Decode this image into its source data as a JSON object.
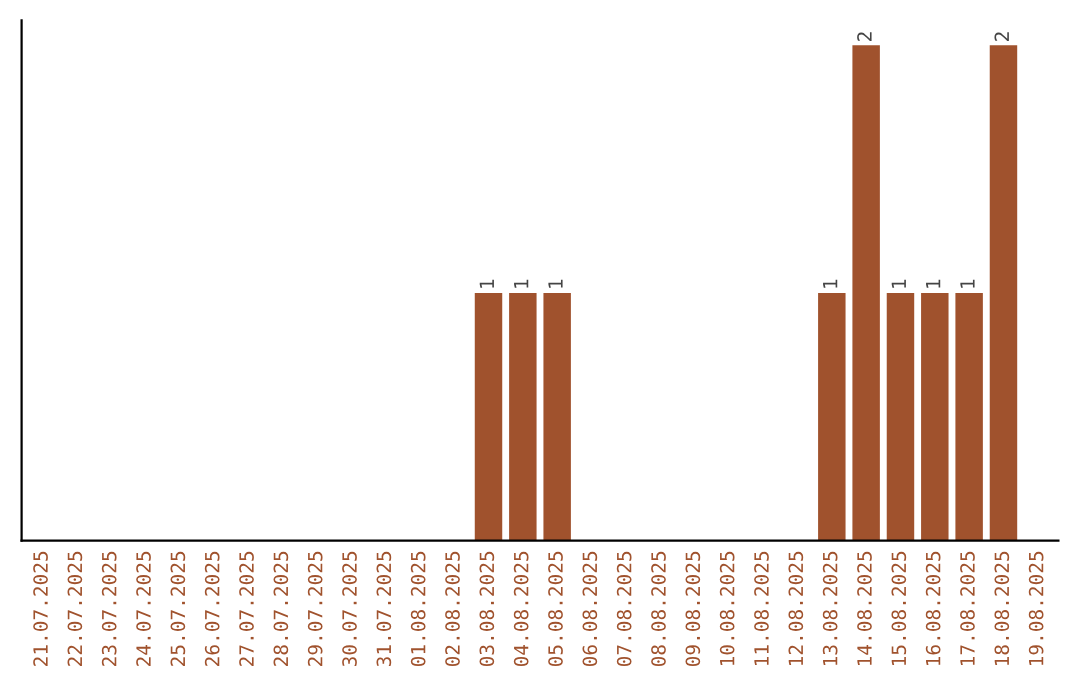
{
  "chart_data": {
    "type": "bar",
    "categories": [
      "21.07.2025",
      "22.07.2025",
      "23.07.2025",
      "24.07.2025",
      "25.07.2025",
      "26.07.2025",
      "27.07.2025",
      "28.07.2025",
      "29.07.2025",
      "30.07.2025",
      "31.07.2025",
      "01.08.2025",
      "02.08.2025",
      "03.08.2025",
      "04.08.2025",
      "05.08.2025",
      "06.08.2025",
      "07.08.2025",
      "08.08.2025",
      "09.08.2025",
      "10.08.2025",
      "11.08.2025",
      "12.08.2025",
      "13.08.2025",
      "14.08.2025",
      "15.08.2025",
      "16.08.2025",
      "17.08.2025",
      "18.08.2025",
      "19.08.2025"
    ],
    "values": [
      null,
      null,
      null,
      null,
      null,
      null,
      null,
      null,
      null,
      null,
      null,
      null,
      null,
      1,
      1,
      1,
      null,
      null,
      null,
      null,
      null,
      null,
      null,
      1,
      2,
      1,
      1,
      1,
      2,
      null
    ],
    "data_labels": true,
    "color": "#a0522d",
    "grid": false,
    "legend": false,
    "tick_labels": "x"
  }
}
